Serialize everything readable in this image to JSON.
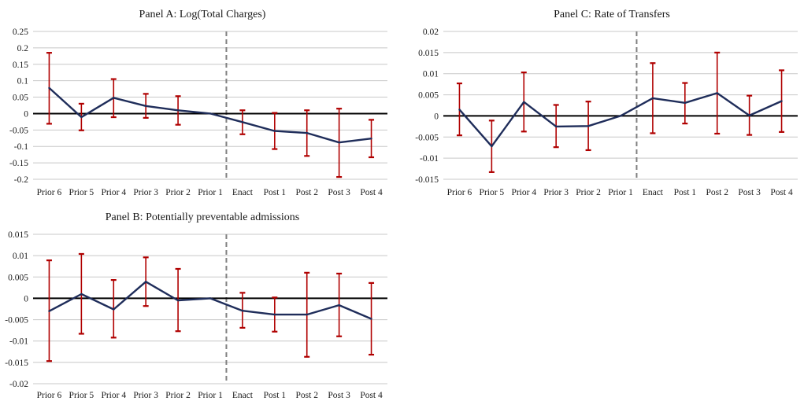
{
  "chart_data": [
    {
      "type": "line",
      "title": "Panel A: Log(Total Charges)",
      "categories": [
        "Prior 6",
        "Prior 5",
        "Prior 4",
        "Prior 3",
        "Prior 2",
        "Prior 1",
        "Enact",
        "Post 1",
        "Post 2",
        "Post 3",
        "Post 4"
      ],
      "values": [
        0.078,
        -0.011,
        0.048,
        0.023,
        0.01,
        0.0,
        -0.026,
        -0.053,
        -0.059,
        -0.088,
        -0.076
      ],
      "err_low": [
        -0.031,
        -0.051,
        -0.011,
        -0.013,
        -0.034,
        null,
        -0.063,
        -0.108,
        -0.129,
        -0.193,
        -0.133
      ],
      "err_high": [
        0.185,
        0.03,
        0.105,
        0.06,
        0.053,
        null,
        0.01,
        0.002,
        0.01,
        0.015,
        -0.019
      ],
      "ylim": [
        -0.2,
        0.25
      ],
      "yticks": [
        0.25,
        0.2,
        0.15,
        0.1,
        0.05,
        0,
        -0.05,
        -0.1,
        -0.15,
        -0.2
      ],
      "ytick_labels": [
        "0.25",
        "0.2",
        "0.15",
        "0.1",
        "0.05",
        "0",
        "-0.05",
        "-0.1",
        "-0.15",
        "-0.2"
      ],
      "divider_category": "Prior 1 / Enact",
      "colors": {
        "line": "#1f2d5a",
        "error": "#b00000",
        "divider": "#808080",
        "grid": "#c8c8c8",
        "zero": "#000000"
      }
    },
    {
      "type": "line",
      "title": "Panel C: Rate of Transfers",
      "categories": [
        "Prior 6",
        "Prior 5",
        "Prior 4",
        "Prior 3",
        "Prior 2",
        "Prior 1",
        "Enact",
        "Post 1",
        "Post 2",
        "Post 3",
        "Post 4"
      ],
      "values": [
        0.0015,
        -0.0072,
        0.0033,
        -0.0025,
        -0.0024,
        0.0,
        0.0042,
        0.0031,
        0.0054,
        0.0001,
        0.0035
      ],
      "err_low": [
        -0.0046,
        -0.0133,
        -0.0037,
        -0.0074,
        -0.0081,
        null,
        -0.0041,
        -0.0018,
        -0.0042,
        -0.0045,
        -0.0038
      ],
      "err_high": [
        0.0077,
        -0.0011,
        0.0103,
        0.0026,
        0.0034,
        null,
        0.0125,
        0.0078,
        0.015,
        0.0048,
        0.0108
      ],
      "ylim": [
        -0.015,
        0.02
      ],
      "yticks": [
        0.02,
        0.015,
        0.01,
        0.005,
        0,
        -0.005,
        -0.01,
        -0.015
      ],
      "ytick_labels": [
        "0.02",
        "0.015",
        "0.01",
        "0.005",
        "0",
        "-0.005",
        "-0.01",
        "-0.015"
      ],
      "divider_category": "Prior 1 / Enact",
      "colors": {
        "line": "#1f2d5a",
        "error": "#b00000",
        "divider": "#808080",
        "grid": "#c8c8c8",
        "zero": "#000000"
      }
    },
    {
      "type": "line",
      "title": "Panel B: Potentially preventable admissions",
      "categories": [
        "Prior 6",
        "Prior 5",
        "Prior 4",
        "Prior 3",
        "Prior 2",
        "Prior 1",
        "Enact",
        "Post 1",
        "Post 2",
        "Post 3",
        "Post 4"
      ],
      "values": [
        -0.003,
        0.001,
        -0.0026,
        0.0039,
        -0.0005,
        0.0,
        -0.0029,
        -0.0038,
        -0.0038,
        -0.0016,
        -0.0048
      ],
      "err_low": [
        -0.0147,
        -0.0083,
        -0.0092,
        -0.0018,
        -0.0077,
        null,
        -0.0069,
        -0.0078,
        -0.0137,
        -0.0089,
        -0.0132
      ],
      "err_high": [
        0.0089,
        0.0104,
        0.0043,
        0.0096,
        0.0069,
        null,
        0.0013,
        0.0002,
        0.006,
        0.0058,
        0.0036
      ],
      "ylim": [
        -0.02,
        0.015
      ],
      "yticks": [
        0.015,
        0.01,
        0.005,
        0,
        -0.005,
        -0.01,
        -0.015,
        -0.02
      ],
      "ytick_labels": [
        "0.015",
        "0.01",
        "0.005",
        "0",
        "-0.005",
        "-0.01",
        "-0.015",
        "-0.02"
      ],
      "divider_category": "Prior 1 / Enact",
      "colors": {
        "line": "#1f2d5a",
        "error": "#b00000",
        "divider": "#808080",
        "grid": "#c8c8c8",
        "zero": "#000000"
      }
    }
  ]
}
